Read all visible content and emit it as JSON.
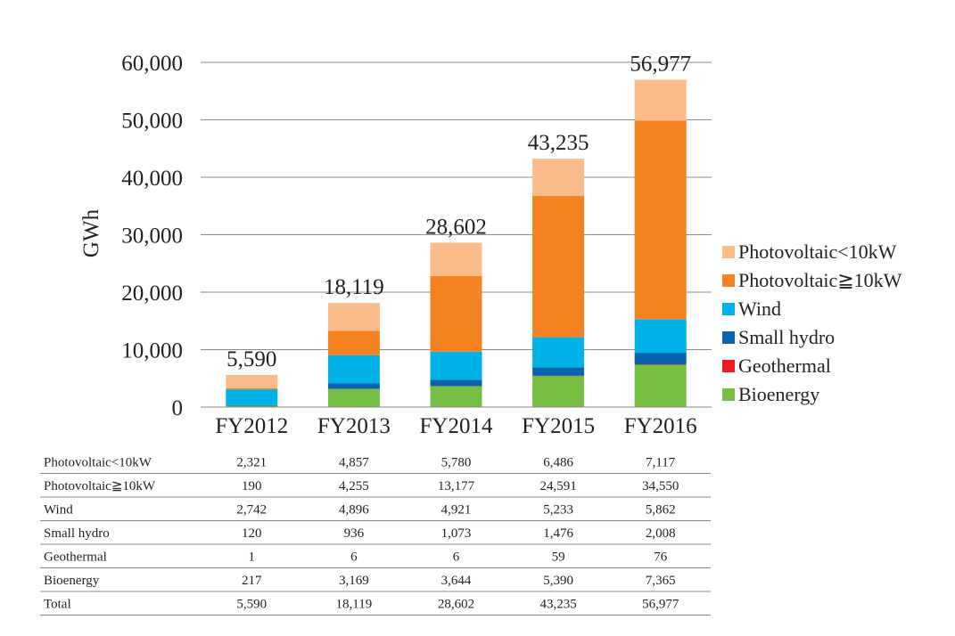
{
  "chart_data": {
    "type": "bar",
    "stacked": true,
    "ylabel": "GWh",
    "ylim": [
      0,
      60000
    ],
    "yticks": [
      0,
      10000,
      20000,
      30000,
      40000,
      50000,
      60000
    ],
    "ytick_labels": [
      "0",
      "10,000",
      "20,000",
      "30,000",
      "40,000",
      "50,000",
      "60,000"
    ],
    "grid": true,
    "legend_position": "right",
    "categories": [
      "FY2012",
      "FY2013",
      "FY2014",
      "FY2015",
      "FY2016"
    ],
    "totals": [
      5590,
      18119,
      28602,
      43235,
      56977
    ],
    "total_labels": [
      "5,590",
      "18,119",
      "28,602",
      "43,235",
      "56,977"
    ],
    "series": [
      {
        "name": "Bioenergy",
        "color": "#76bd43",
        "values": [
          217,
          3169,
          3644,
          5390,
          7365
        ],
        "labels": [
          "217",
          "3,169",
          "3,644",
          "5,390",
          "7,365"
        ]
      },
      {
        "name": "Geothermal",
        "color": "#ed1c24",
        "values": [
          1,
          6,
          6,
          59,
          76
        ],
        "labels": [
          "1",
          "6",
          "6",
          "59",
          "76"
        ]
      },
      {
        "name": "Small hydro",
        "color": "#0a63ae",
        "values": [
          120,
          936,
          1073,
          1476,
          2008
        ],
        "labels": [
          "120",
          "936",
          "1,073",
          "1,476",
          "2,008"
        ]
      },
      {
        "name": "Wind",
        "color": "#00b2e8",
        "values": [
          2742,
          4896,
          4921,
          5233,
          5862
        ],
        "labels": [
          "2,742",
          "4,896",
          "4,921",
          "5,233",
          "5,862"
        ]
      },
      {
        "name": "Photovoltaic≥10kW",
        "color": "#f58220",
        "values": [
          190,
          4255,
          13177,
          24591,
          34550
        ],
        "labels": [
          "190",
          "4,255",
          "13,177",
          "24,591",
          "34,550"
        ]
      },
      {
        "name": "Photovoltaic<10kW",
        "color": "#fbbc8a",
        "values": [
          2321,
          4857,
          5780,
          6486,
          7117
        ],
        "labels": [
          "2,321",
          "4,857",
          "5,780",
          "6,486",
          "7,117"
        ]
      }
    ],
    "legend_order": [
      "Photovoltaic<10kW",
      "Photovoltaic≥10kW",
      "Wind",
      "Small hydro",
      "Geothermal",
      "Bioenergy"
    ],
    "legend_labels": [
      "Photovoltaic<10kW",
      "Photovoltaic≧10kW",
      "Wind",
      "Small hydro",
      "Geothermal",
      "Bioenergy"
    ],
    "table": {
      "row_labels": [
        "Photovoltaic<10kW",
        "Photovoltaic≧10kW",
        "Wind",
        "Small hydro",
        "Geothermal",
        "Bioenergy",
        "Total"
      ],
      "row_series": [
        "Photovoltaic<10kW",
        "Photovoltaic≥10kW",
        "Wind",
        "Small hydro",
        "Geothermal",
        "Bioenergy",
        "Total"
      ]
    }
  }
}
